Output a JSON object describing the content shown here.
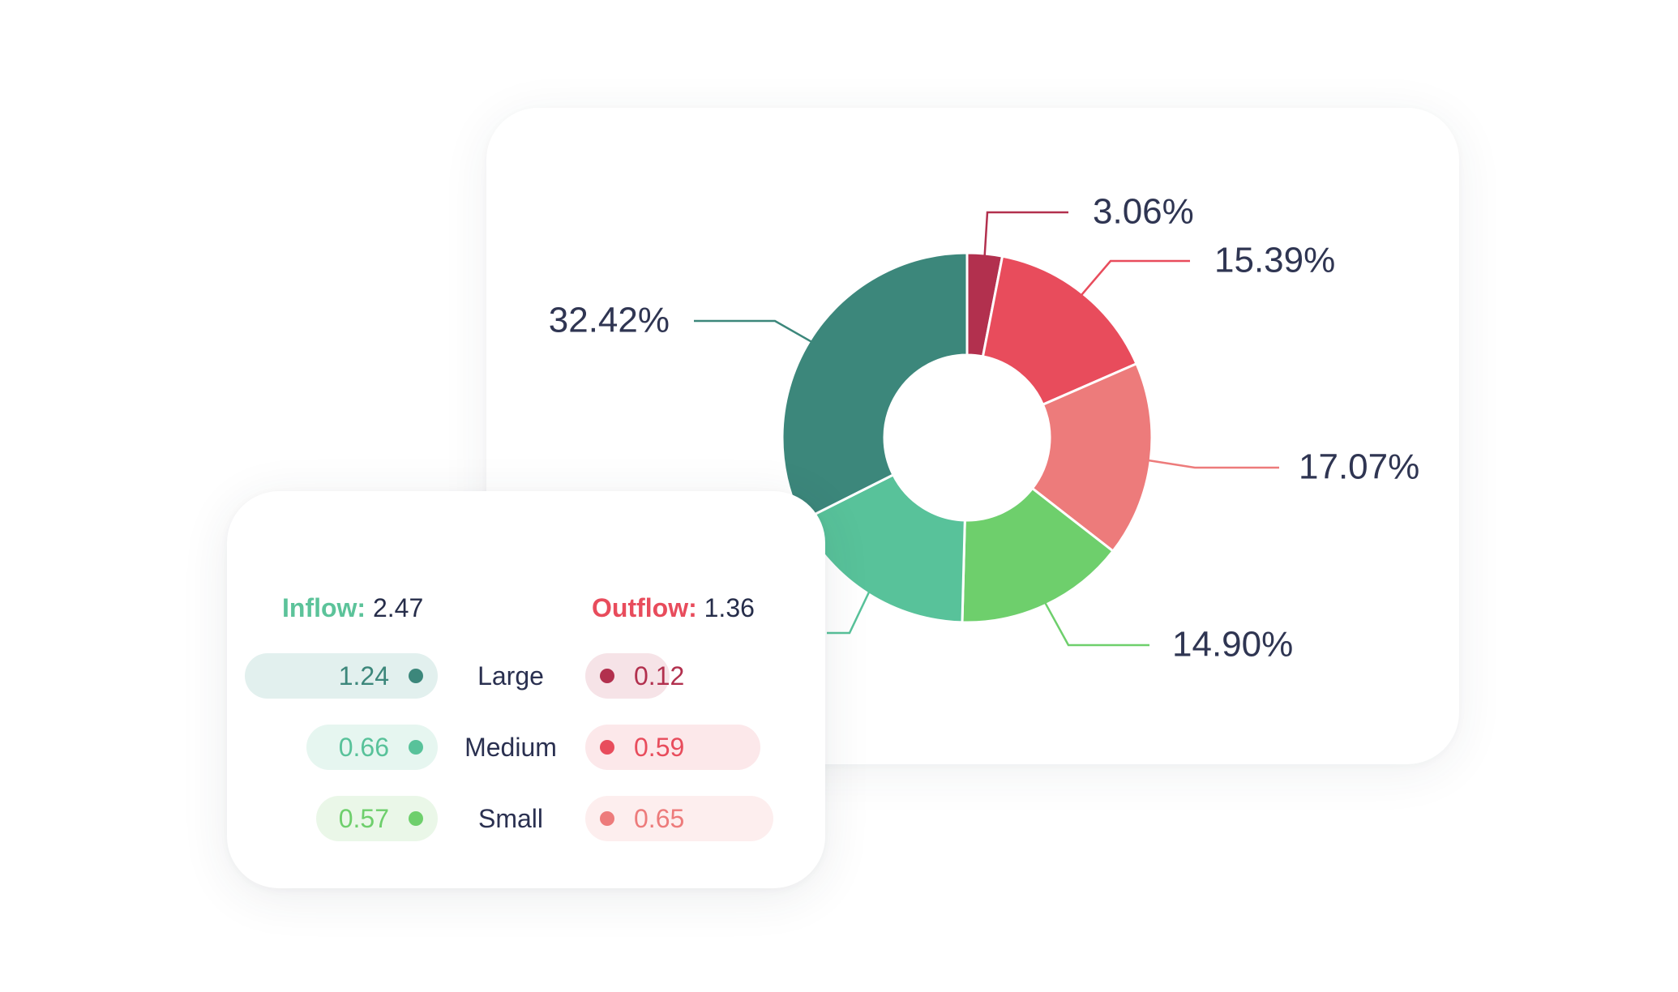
{
  "chart_data": {
    "type": "pie",
    "variant": "donut",
    "title": "",
    "slices": [
      {
        "label": "3.06%",
        "value": 3.06,
        "color": "#b2304e"
      },
      {
        "label": "15.39%",
        "value": 15.39,
        "color": "#e84c5c"
      },
      {
        "label": "17.07%",
        "value": 17.07,
        "color": "#ed7b7b"
      },
      {
        "label": "14.90%",
        "value": 14.9,
        "color": "#6ecf6c"
      },
      {
        "label": "",
        "value": 17.16,
        "color": "#58c29a"
      },
      {
        "label": "32.42%",
        "value": 32.42,
        "color": "#3c877b"
      }
    ]
  },
  "legend": {
    "inflow": {
      "label": "Inflow:",
      "total": "2.47"
    },
    "outflow": {
      "label": "Outflow:",
      "total": "1.36"
    },
    "rows": [
      {
        "label": "Large",
        "inflow": {
          "value": "1.24",
          "color": "#3c877b",
          "bg": "#e2f0ee"
        },
        "outflow": {
          "value": "0.12",
          "color": "#b2304e",
          "bg": "#f6e3e7"
        }
      },
      {
        "label": "Medium",
        "inflow": {
          "value": "0.66",
          "color": "#58c29a",
          "bg": "#e6f6f0"
        },
        "outflow": {
          "value": "0.59",
          "color": "#e84c5c",
          "bg": "#fce8ea"
        }
      },
      {
        "label": "Small",
        "inflow": {
          "value": "0.57",
          "color": "#6ecf6c",
          "bg": "#eaf7e8"
        },
        "outflow": {
          "value": "0.65",
          "color": "#ed7b7b",
          "bg": "#fdeeee"
        }
      }
    ]
  }
}
